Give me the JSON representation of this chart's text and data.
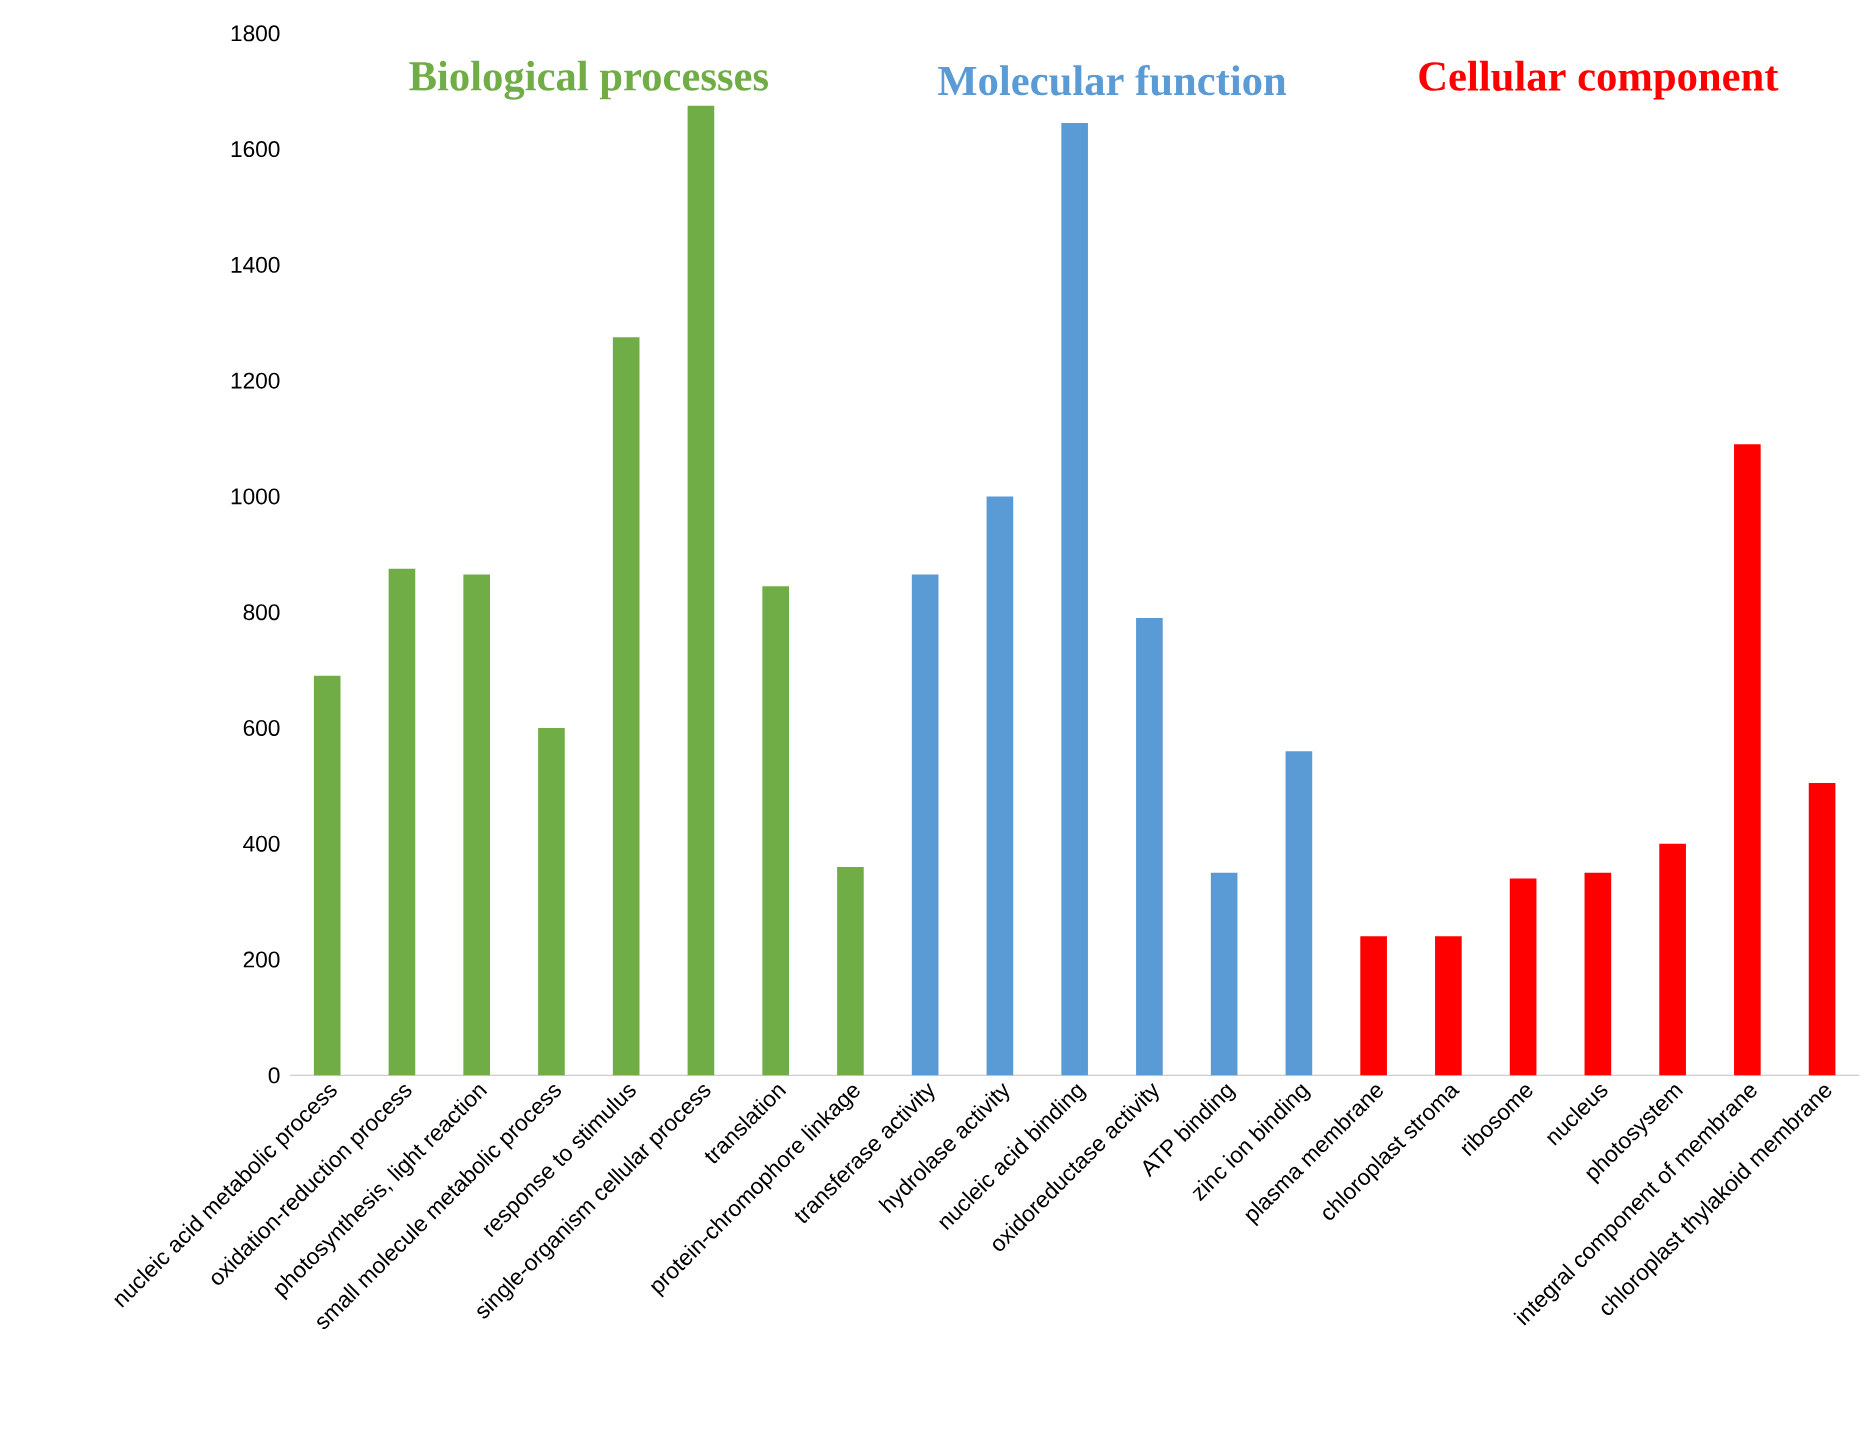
{
  "chart_data": {
    "type": "bar",
    "categories": [
      "nucleic acid metabolic process",
      "oxidation-reduction process",
      "photosynthesis, light reaction",
      "small molecule metabolic process",
      "response to stimulus",
      "single-organism cellular process",
      "translation",
      "protein-chromophore linkage",
      "transferase activity",
      "hydrolase activity",
      "nucleic acid binding",
      "oxidoreductase activity",
      "ATP binding",
      "zinc ion binding",
      "plasma membrane",
      "chloroplast stroma",
      "ribosome",
      "nucleus",
      "photosystem",
      "integral component of membrane",
      "chloroplast thylakoid membrane"
    ],
    "values": [
      690,
      875,
      865,
      600,
      1275,
      1675,
      845,
      360,
      865,
      1000,
      1645,
      790,
      350,
      560,
      240,
      240,
      340,
      350,
      400,
      1090,
      505
    ],
    "colors": [
      "#70ad47",
      "#70ad47",
      "#70ad47",
      "#70ad47",
      "#70ad47",
      "#70ad47",
      "#70ad47",
      "#70ad47",
      "#5b9bd5",
      "#5b9bd5",
      "#5b9bd5",
      "#5b9bd5",
      "#5b9bd5",
      "#5b9bd5",
      "#ff0000",
      "#ff0000",
      "#ff0000",
      "#ff0000",
      "#ff0000",
      "#ff0000",
      "#ff0000"
    ],
    "annotations": [
      "Biological processes",
      "Molecular function",
      "Cellular component"
    ],
    "ylim": [
      0,
      1800
    ],
    "yticks": [
      0,
      200,
      400,
      600,
      800,
      1000,
      1200,
      1400,
      1600,
      1800
    ]
  }
}
